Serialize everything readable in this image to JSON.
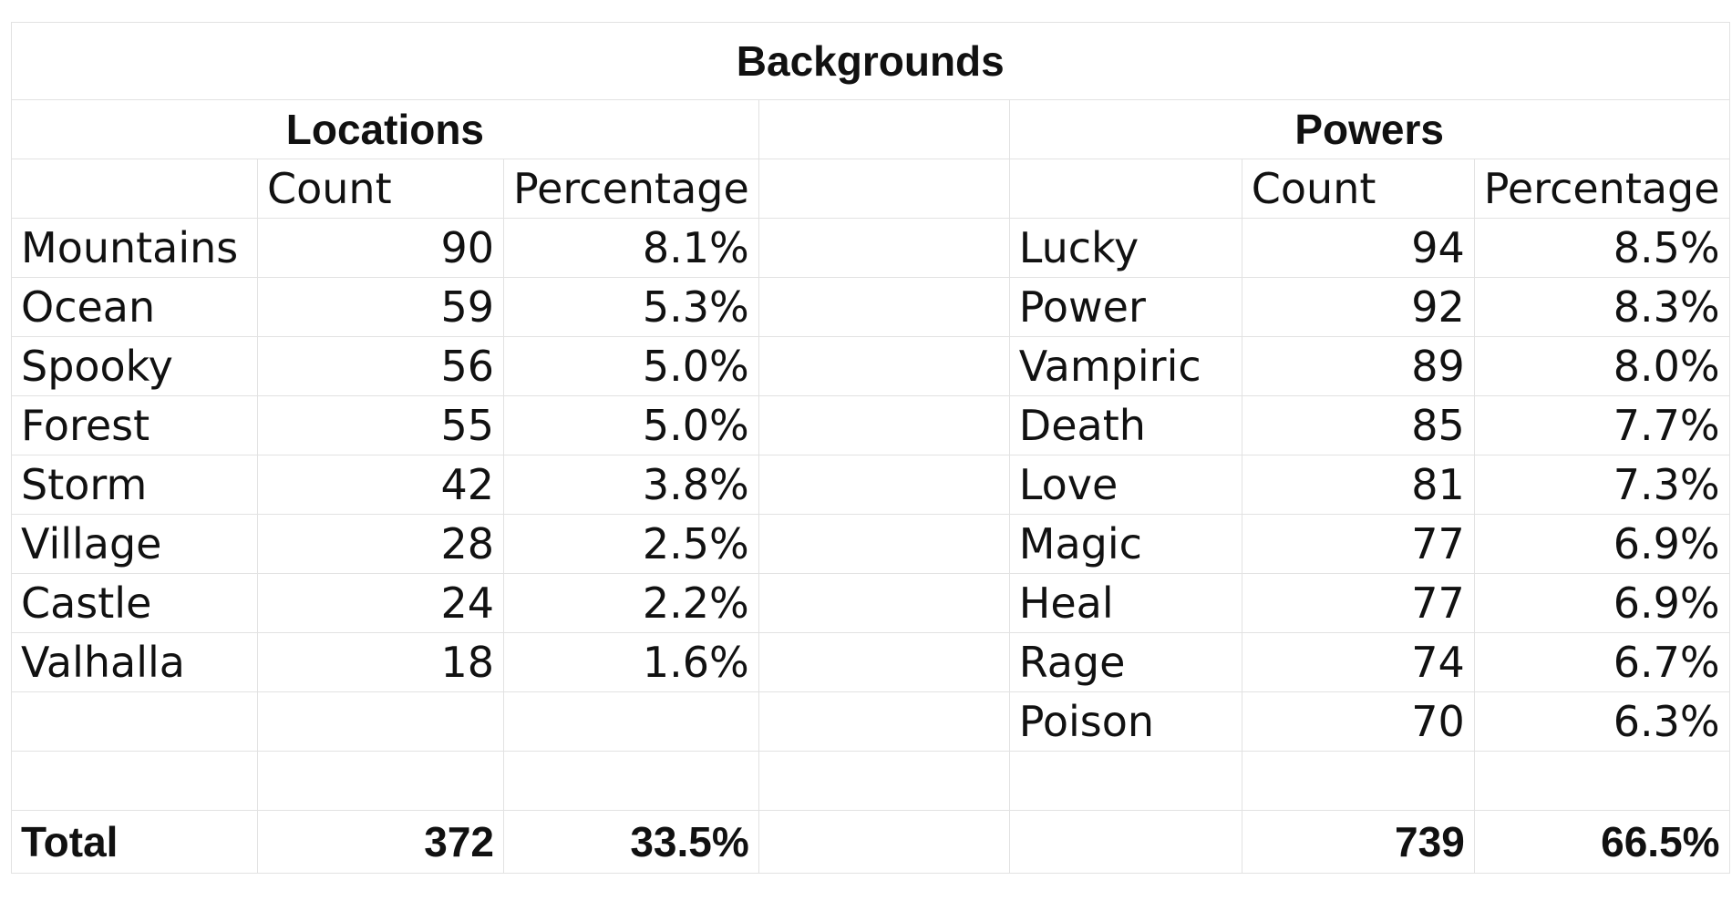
{
  "title": "Backgrounds",
  "locations": {
    "heading": "Locations",
    "count_header": "Count",
    "percentage_header": "Percentage",
    "rows": [
      {
        "name": "Mountains",
        "count": "90",
        "pct": "8.1%"
      },
      {
        "name": "Ocean",
        "count": "59",
        "pct": "5.3%"
      },
      {
        "name": "Spooky",
        "count": "56",
        "pct": "5.0%"
      },
      {
        "name": "Forest",
        "count": "55",
        "pct": "5.0%"
      },
      {
        "name": "Storm",
        "count": "42",
        "pct": "3.8%"
      },
      {
        "name": "Village",
        "count": "28",
        "pct": "2.5%"
      },
      {
        "name": "Castle",
        "count": "24",
        "pct": "2.2%"
      },
      {
        "name": "Valhalla",
        "count": "18",
        "pct": "1.6%"
      }
    ],
    "total_label": "Total",
    "total_count": "372",
    "total_pct": "33.5%"
  },
  "powers": {
    "heading": "Powers",
    "count_header": "Count",
    "percentage_header": "Percentage",
    "rows": [
      {
        "name": "Lucky",
        "count": "94",
        "pct": "8.5%"
      },
      {
        "name": "Power",
        "count": "92",
        "pct": "8.3%"
      },
      {
        "name": "Vampiric",
        "count": "89",
        "pct": "8.0%"
      },
      {
        "name": "Death",
        "count": "85",
        "pct": "7.7%"
      },
      {
        "name": "Love",
        "count": "81",
        "pct": "7.3%"
      },
      {
        "name": "Magic",
        "count": "77",
        "pct": "6.9%"
      },
      {
        "name": "Heal",
        "count": "77",
        "pct": "6.9%"
      },
      {
        "name": "Rage",
        "count": "74",
        "pct": "6.7%"
      },
      {
        "name": "Poison",
        "count": "70",
        "pct": "6.3%"
      }
    ],
    "total_count": "739",
    "total_pct": "66.5%"
  }
}
